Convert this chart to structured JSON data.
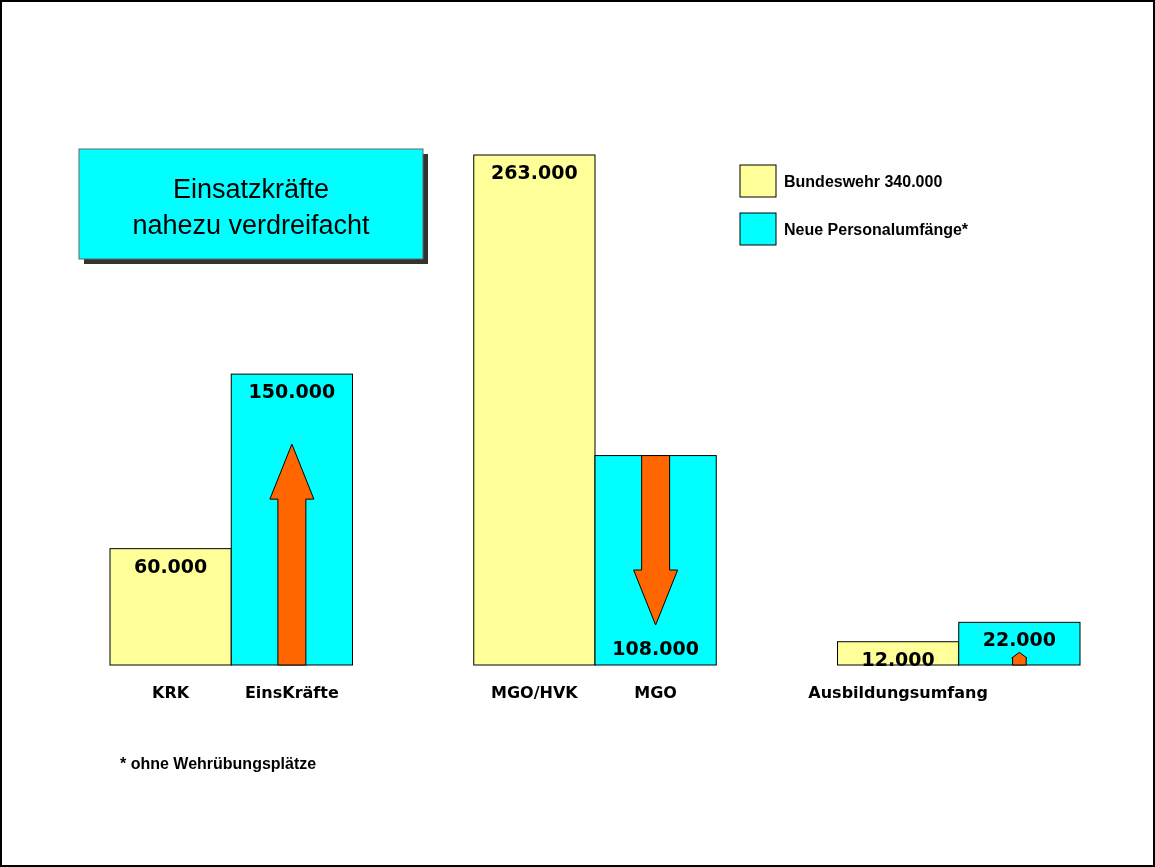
{
  "chart_data": {
    "type": "bar",
    "categories": [
      "KRK",
      "EinsKräfte",
      null,
      "MGO/HVK",
      "MGO",
      null,
      "Ausbildungsumfang",
      null
    ],
    "series": [
      {
        "name": "Bundeswehr 340.000",
        "color": "#ffff99",
        "values": [
          60000,
          null,
          null,
          263000,
          null,
          null,
          12000,
          null
        ],
        "value_labels": [
          "60.000",
          null,
          null,
          "263.000",
          null,
          null,
          "12.000",
          null
        ]
      },
      {
        "name": "Neue Personalumfänge*",
        "color": "#00ffff",
        "values": [
          null,
          150000,
          null,
          null,
          108000,
          null,
          null,
          22000
        ],
        "value_labels": [
          null,
          "150.000",
          null,
          null,
          "108.000",
          null,
          null,
          "22.000"
        ]
      }
    ],
    "legend": "top right",
    "annotations": [
      "Einsatzkräfte nahezu verdreifacht",
      "* ohne Wehrübungsplätze"
    ]
  }
}
